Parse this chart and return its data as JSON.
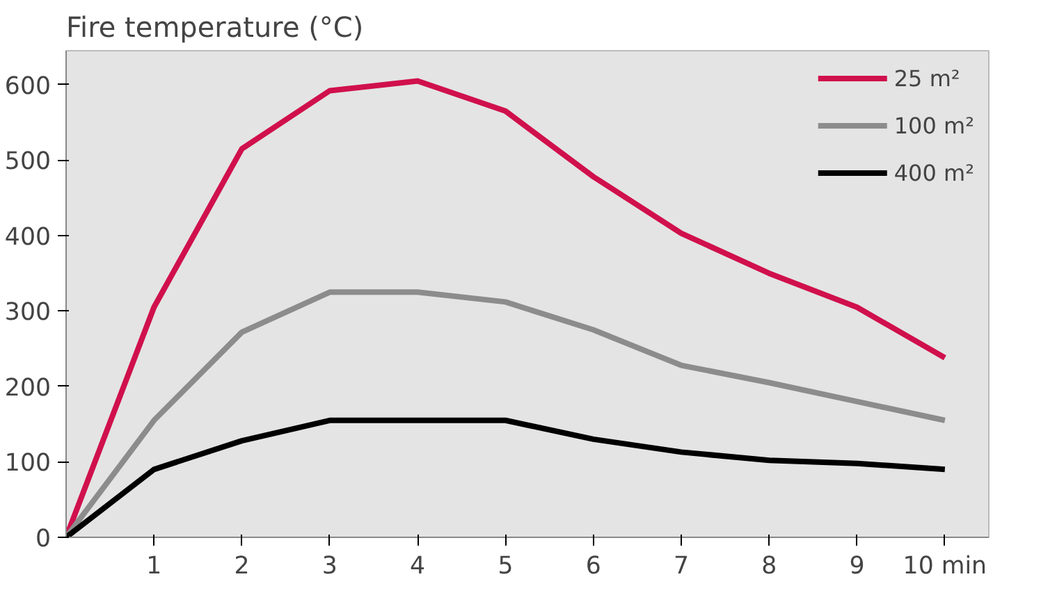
{
  "chart_data": {
    "type": "line",
    "title": "Fire temperature (°C)",
    "x": [
      0,
      1,
      2,
      3,
      4,
      5,
      6,
      7,
      8,
      9,
      10
    ],
    "series": [
      {
        "name": "25 m²",
        "color": "#d0104c",
        "values": [
          0,
          305,
          515,
          592,
          605,
          565,
          478,
          403,
          350,
          305,
          238
        ]
      },
      {
        "name": "100 m²",
        "color": "#8c8c8c",
        "values": [
          0,
          155,
          272,
          325,
          325,
          312,
          275,
          228,
          205,
          180,
          155
        ]
      },
      {
        "name": "400 m²",
        "color": "#000000",
        "values": [
          0,
          90,
          128,
          155,
          155,
          155,
          130,
          113,
          102,
          98,
          90
        ]
      }
    ],
    "xlim": [
      0,
      10.5
    ],
    "ylim": [
      0,
      645
    ],
    "xticks": [
      1,
      2,
      3,
      4,
      5,
      6,
      7,
      8,
      9,
      {
        "value": 10,
        "label": "10 min"
      }
    ],
    "yticks": [
      0,
      100,
      200,
      300,
      400,
      500,
      600
    ],
    "grid": false,
    "legend": "top right",
    "marker": "none",
    "line_style": "solid"
  }
}
